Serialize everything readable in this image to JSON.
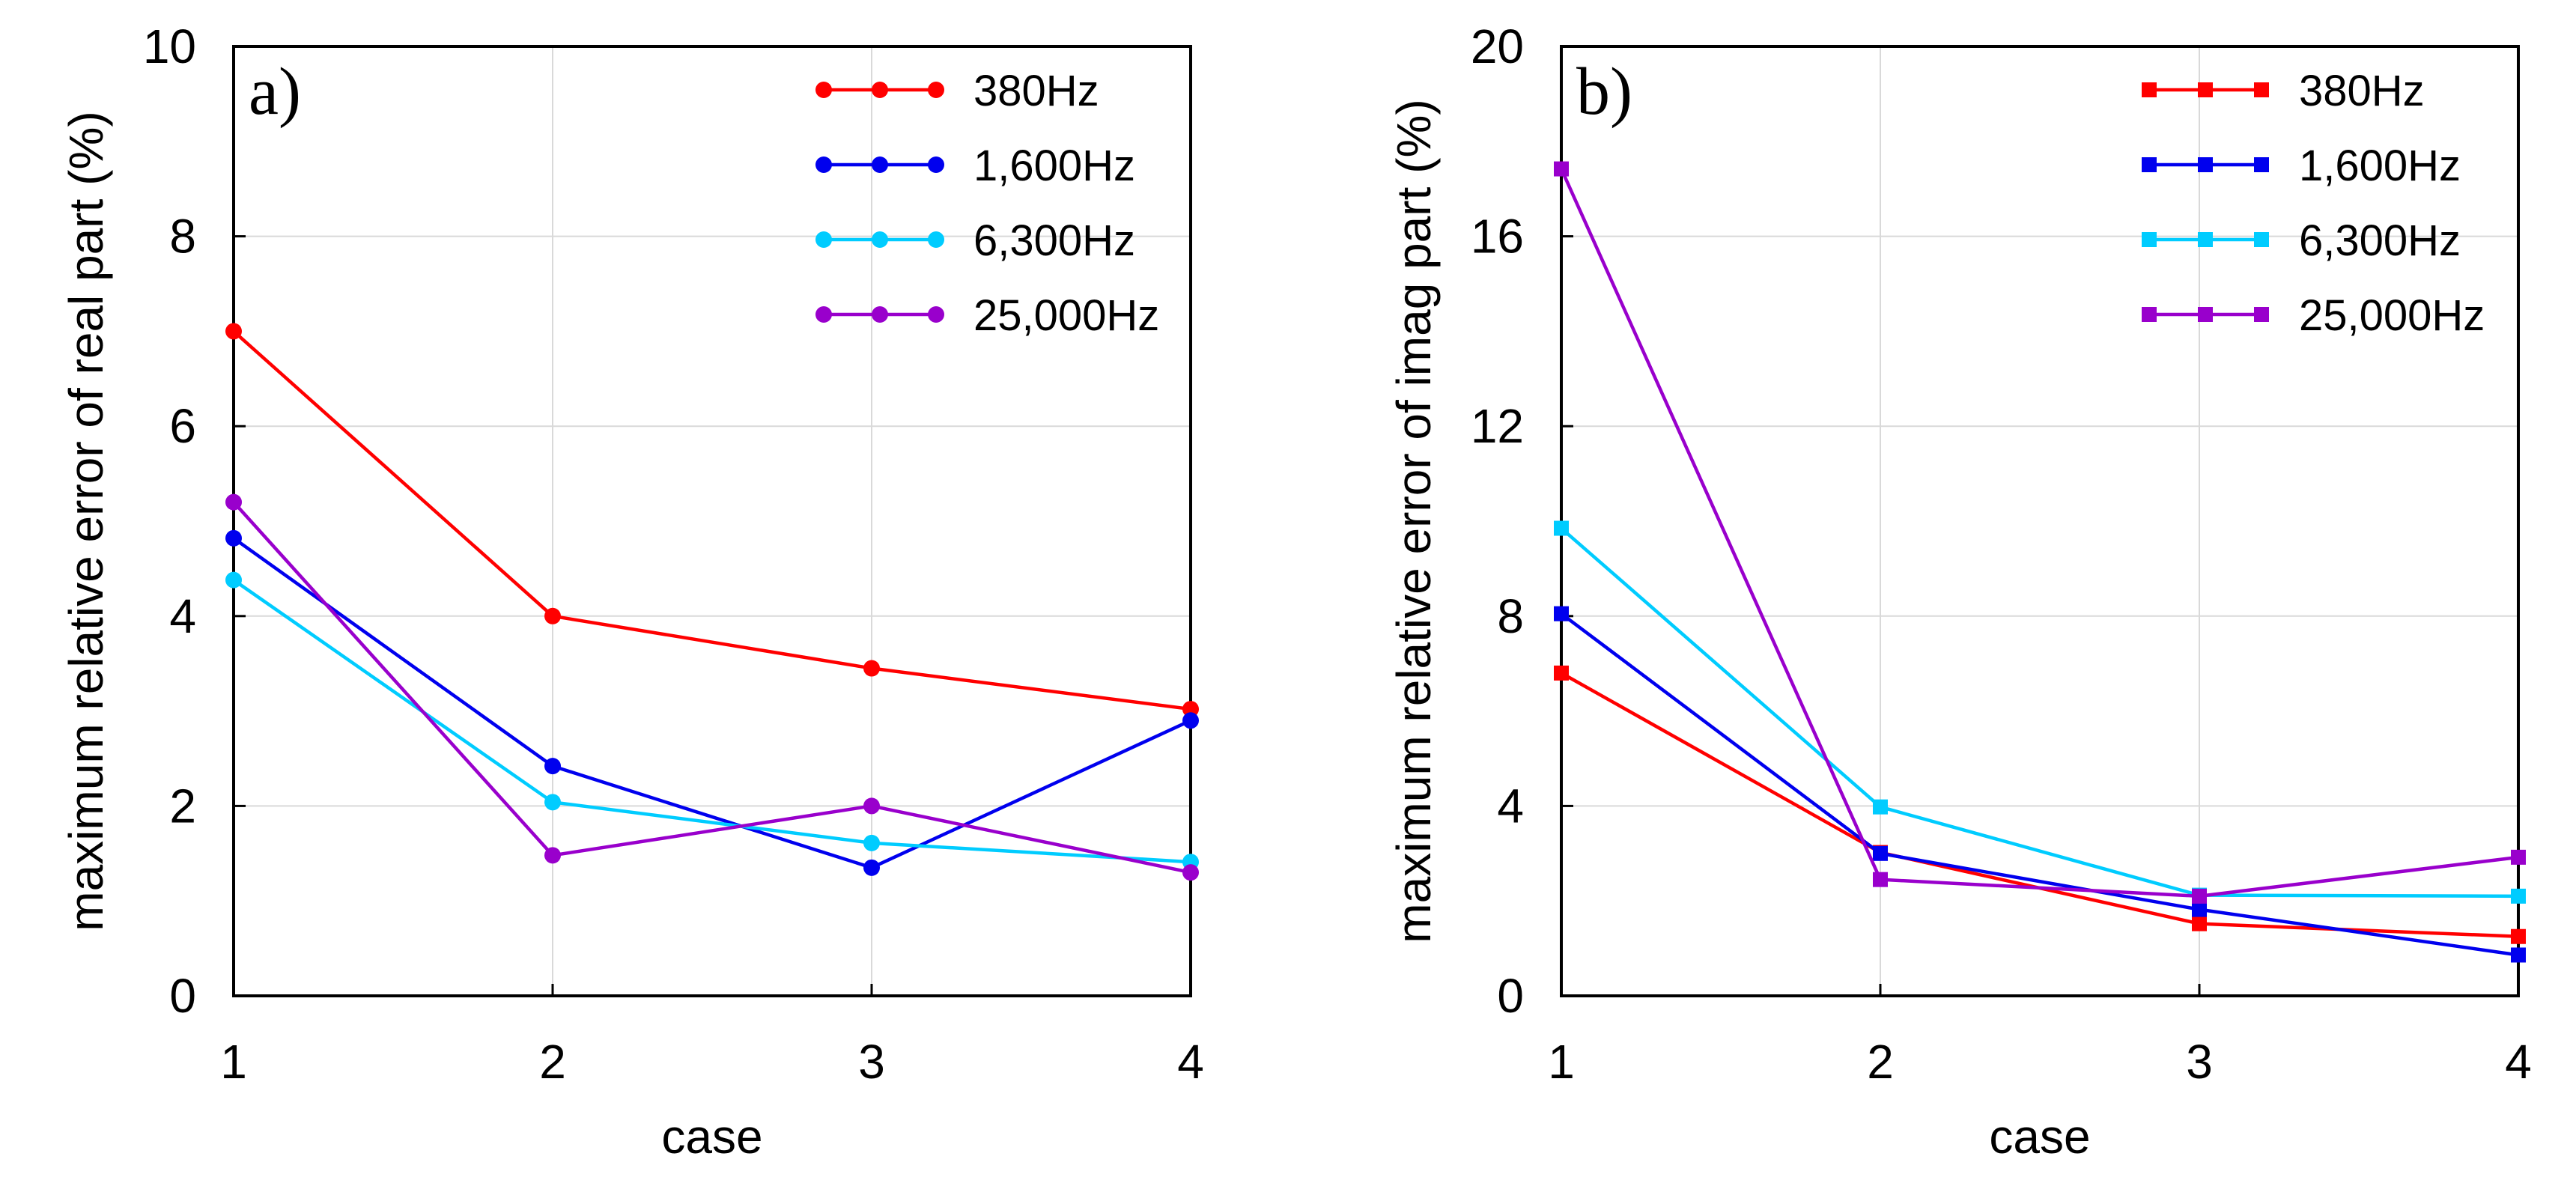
{
  "chart_data": [
    {
      "type": "line",
      "panel_label": "a)",
      "marker": "circle",
      "title": "",
      "xlabel": "case",
      "ylabel": "maximum relative error of real part (%)",
      "x": [
        1,
        2,
        3,
        4
      ],
      "xticks": [
        "1",
        "2",
        "3",
        "4"
      ],
      "ylim": [
        0,
        10
      ],
      "yticks": [
        "0",
        "2",
        "4",
        "6",
        "8",
        "10"
      ],
      "grid": true,
      "legend_position": "top-right",
      "series": [
        {
          "name": "380Hz",
          "color": "#ff0000",
          "values": [
            7.0,
            4.0,
            3.45,
            3.02
          ]
        },
        {
          "name": "1,600Hz",
          "color": "#0000ee",
          "values": [
            4.82,
            2.42,
            1.35,
            2.9
          ]
        },
        {
          "name": "6,300Hz",
          "color": "#00ccff",
          "values": [
            4.38,
            2.04,
            1.61,
            1.41
          ]
        },
        {
          "name": "25,000Hz",
          "color": "#9900cc",
          "values": [
            5.2,
            1.48,
            2.0,
            1.3
          ]
        }
      ]
    },
    {
      "type": "line",
      "panel_label": "b)",
      "marker": "square",
      "title": "",
      "xlabel": "case",
      "ylabel": "maximum relative error of imag part (%)",
      "x": [
        1,
        2,
        3,
        4
      ],
      "xticks": [
        "1",
        "2",
        "3",
        "4"
      ],
      "ylim": [
        0,
        20
      ],
      "yticks": [
        "0",
        "4",
        "8",
        "12",
        "16",
        "20"
      ],
      "grid": true,
      "legend_position": "top-right",
      "series": [
        {
          "name": "380Hz",
          "color": "#ff0000",
          "values": [
            6.8,
            3.02,
            1.52,
            1.25
          ]
        },
        {
          "name": "1,600Hz",
          "color": "#0000ee",
          "values": [
            8.05,
            3.0,
            1.82,
            0.86
          ]
        },
        {
          "name": "6,300Hz",
          "color": "#00ccff",
          "values": [
            9.85,
            3.98,
            2.12,
            2.1
          ]
        },
        {
          "name": "25,000Hz",
          "color": "#9900cc",
          "values": [
            17.42,
            2.45,
            2.1,
            2.92
          ]
        }
      ]
    }
  ]
}
